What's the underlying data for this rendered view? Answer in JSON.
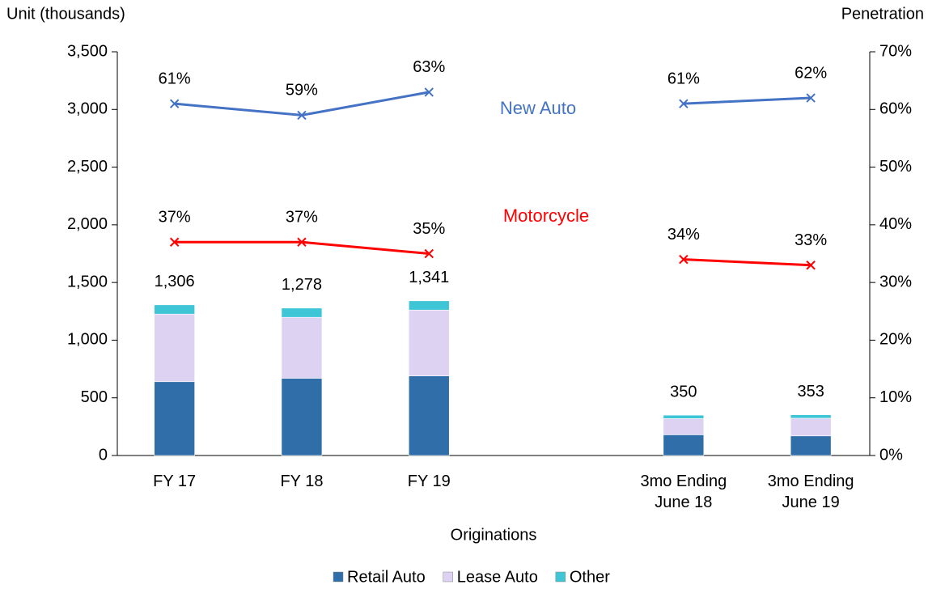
{
  "chart_data": {
    "type": "bar",
    "y_label": "Unit (thousands)",
    "y2_label": "Penetration",
    "x_label": "Originations",
    "categories": [
      "FY 17",
      "FY 18",
      "FY 19",
      null,
      "3mo Ending\nJune 18",
      "3mo Ending\nJune 19"
    ],
    "series": [
      {
        "name": "Retail Auto",
        "color": "#2f6ea8",
        "values": [
          640,
          670,
          690,
          null,
          180,
          170
        ]
      },
      {
        "name": "Lease Auto",
        "color": "#ddd2f2",
        "values": [
          586,
          528,
          571,
          null,
          140,
          153
        ]
      },
      {
        "name": "Other",
        "color": "#3fc6d6",
        "values": [
          80,
          80,
          80,
          null,
          30,
          30
        ]
      },
      {
        "name": "New Auto",
        "type": "line",
        "axis": "y2",
        "color": "#4472c4",
        "values": [
          61,
          59,
          63,
          null,
          61,
          62
        ],
        "value_labels": [
          "61%",
          "59%",
          "63%",
          null,
          "61%",
          "62%"
        ]
      },
      {
        "name": "Motorcycle",
        "type": "line",
        "axis": "y2",
        "color": "#ff0000",
        "values": [
          37,
          37,
          35,
          null,
          34,
          33
        ],
        "value_labels": [
          "37%",
          "37%",
          "35%",
          null,
          "34%",
          "33%"
        ]
      }
    ],
    "totals": [
      1306,
      1278,
      1341,
      null,
      350,
      353
    ],
    "total_labels": [
      "1,306",
      "1,278",
      "1,341",
      null,
      "350",
      "353"
    ],
    "ylim": [
      0,
      3500
    ],
    "yticks": [
      0,
      500,
      {
        "value": 1000,
        "label": "1,000"
      },
      {
        "value": 1500,
        "label": "1,500"
      },
      {
        "value": 2000,
        "label": "2,000"
      },
      {
        "value": 2500,
        "label": "2,500"
      },
      {
        "value": 3000,
        "label": "3,000"
      },
      {
        "value": 3500,
        "label": "3,500"
      }
    ],
    "y2lim": [
      0,
      70
    ],
    "y2ticks": [
      {
        "value": 0,
        "label": "0%"
      },
      {
        "value": 10,
        "label": "10%"
      },
      {
        "value": 20,
        "label": "20%"
      },
      {
        "value": 30,
        "label": "30%"
      },
      {
        "value": 40,
        "label": "40%"
      },
      {
        "value": 50,
        "label": "50%"
      },
      {
        "value": 60,
        "label": "60%"
      },
      {
        "value": 70,
        "label": "70%"
      }
    ],
    "legend": "bottom"
  }
}
